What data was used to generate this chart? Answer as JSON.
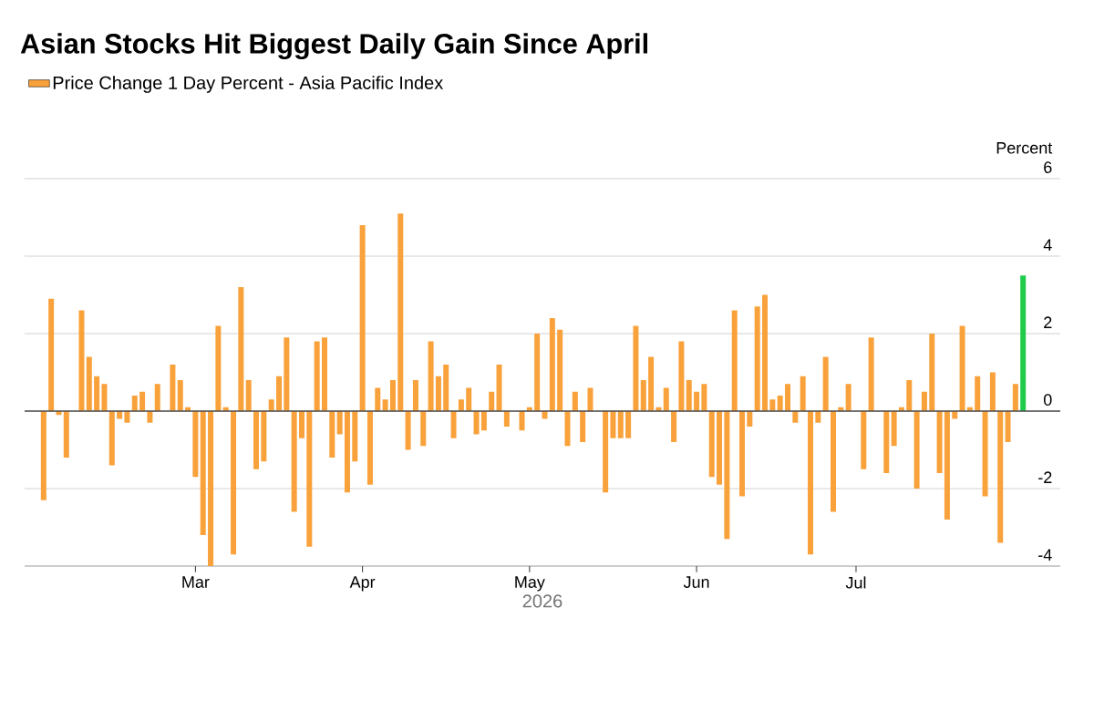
{
  "chart_data": {
    "type": "bar",
    "title": "Asian Stocks Hit Biggest Daily Gain Since April",
    "xlabel": "2026",
    "ylabel": "Percent",
    "categories": [
      null,
      null,
      null,
      null,
      null,
      null,
      null,
      null,
      null,
      null,
      null,
      null,
      null,
      null,
      null,
      null,
      null,
      null,
      null,
      null,
      "Mar",
      null,
      null,
      null,
      null,
      null,
      null,
      null,
      null,
      null,
      null,
      null,
      null,
      null,
      null,
      null,
      null,
      null,
      null,
      null,
      null,
      null,
      "Apr",
      null,
      null,
      null,
      null,
      null,
      null,
      null,
      null,
      null,
      null,
      null,
      null,
      null,
      null,
      null,
      null,
      null,
      null,
      null,
      null,
      null,
      "May",
      null,
      null,
      null,
      null,
      null,
      null,
      null,
      null,
      null,
      null,
      null,
      null,
      null,
      null,
      null,
      null,
      null,
      null,
      null,
      null,
      null,
      "Jun",
      null,
      null,
      null,
      null,
      null,
      null,
      null,
      null,
      null,
      null,
      null,
      null,
      null,
      null,
      null,
      null,
      null,
      null,
      null,
      null,
      "Jul",
      null,
      null,
      null,
      null,
      null,
      null,
      null,
      null,
      null,
      null,
      null,
      null,
      null,
      null,
      null,
      null,
      null,
      null,
      null,
      null,
      null,
      null
    ],
    "series": [
      {
        "name": "Price Change 1 Day Percent - Asia Pacific Index",
        "color": "#f9a13a",
        "values": [
          -2.3,
          2.9,
          -0.1,
          -1.2,
          0.0,
          2.6,
          1.4,
          0.9,
          0.7,
          -1.4,
          -0.2,
          -0.3,
          0.4,
          0.5,
          -0.3,
          0.7,
          0.0,
          1.2,
          0.8,
          0.1,
          -1.7,
          -3.2,
          -4.0,
          2.2,
          0.1,
          -3.7,
          3.2,
          0.8,
          -1.5,
          -1.3,
          0.3,
          0.9,
          1.9,
          -2.6,
          -0.7,
          -3.5,
          1.8,
          1.9,
          -1.2,
          -0.6,
          -2.1,
          -1.3,
          4.8,
          -1.9,
          0.6,
          0.3,
          0.8,
          5.1,
          -1.0,
          0.8,
          -0.9,
          1.8,
          0.9,
          1.2,
          -0.7,
          0.3,
          0.6,
          -0.6,
          -0.5,
          0.5,
          1.2,
          -0.4,
          0.0,
          -0.5,
          0.1,
          2.0,
          -0.2,
          2.4,
          2.1,
          -0.9,
          0.5,
          -0.8,
          0.6,
          0.0,
          -2.1,
          -0.7,
          -0.7,
          -0.7,
          2.2,
          0.8,
          1.4,
          0.1,
          0.6,
          -0.8,
          1.8,
          0.8,
          0.5,
          0.7,
          -1.7,
          -1.9,
          -3.3,
          2.6,
          -2.2,
          -0.4,
          2.7,
          3.0,
          0.3,
          0.4,
          0.7,
          -0.3,
          0.9,
          -3.7,
          -0.3,
          1.4,
          -2.6,
          0.1,
          0.7,
          0.0,
          -1.5,
          1.9,
          0.0,
          -1.6,
          -0.9,
          0.1,
          0.8,
          -2.0,
          0.5,
          2.0,
          -1.6,
          -2.8,
          -0.2,
          2.2,
          0.1,
          0.9,
          -2.2,
          1.0,
          -3.4,
          -0.8,
          0.7,
          3.5
        ],
        "colors": [
          "#f9a13a",
          "#f9a13a",
          "#f9a13a",
          "#f9a13a",
          "#f9a13a",
          "#f9a13a",
          "#f9a13a",
          "#f9a13a",
          "#f9a13a",
          "#f9a13a",
          "#f9a13a",
          "#f9a13a",
          "#f9a13a",
          "#f9a13a",
          "#f9a13a",
          "#f9a13a",
          "#f9a13a",
          "#f9a13a",
          "#f9a13a",
          "#f9a13a",
          "#f9a13a",
          "#f9a13a",
          "#f9a13a",
          "#f9a13a",
          "#f9a13a",
          "#f9a13a",
          "#f9a13a",
          "#f9a13a",
          "#f9a13a",
          "#f9a13a",
          "#f9a13a",
          "#f9a13a",
          "#f9a13a",
          "#f9a13a",
          "#f9a13a",
          "#f9a13a",
          "#f9a13a",
          "#f9a13a",
          "#f9a13a",
          "#f9a13a",
          "#f9a13a",
          "#f9a13a",
          "#f9a13a",
          "#f9a13a",
          "#f9a13a",
          "#f9a13a",
          "#f9a13a",
          "#f9a13a",
          "#f9a13a",
          "#f9a13a",
          "#f9a13a",
          "#f9a13a",
          "#f9a13a",
          "#f9a13a",
          "#f9a13a",
          "#f9a13a",
          "#f9a13a",
          "#f9a13a",
          "#f9a13a",
          "#f9a13a",
          "#f9a13a",
          "#f9a13a",
          "#f9a13a",
          "#f9a13a",
          "#f9a13a",
          "#f9a13a",
          "#f9a13a",
          "#f9a13a",
          "#f9a13a",
          "#f9a13a",
          "#f9a13a",
          "#f9a13a",
          "#f9a13a",
          "#f9a13a",
          "#f9a13a",
          "#f9a13a",
          "#f9a13a",
          "#f9a13a",
          "#f9a13a",
          "#f9a13a",
          "#f9a13a",
          "#f9a13a",
          "#f9a13a",
          "#f9a13a",
          "#f9a13a",
          "#f9a13a",
          "#f9a13a",
          "#f9a13a",
          "#f9a13a",
          "#f9a13a",
          "#f9a13a",
          "#f9a13a",
          "#f9a13a",
          "#f9a13a",
          "#f9a13a",
          "#f9a13a",
          "#f9a13a",
          "#f9a13a",
          "#f9a13a",
          "#f9a13a",
          "#f9a13a",
          "#f9a13a",
          "#f9a13a",
          "#f9a13a",
          "#f9a13a",
          "#f9a13a",
          "#f9a13a",
          "#f9a13a",
          "#f9a13a",
          "#f9a13a",
          "#f9a13a",
          "#f9a13a",
          "#f9a13a",
          "#f9a13a",
          "#f9a13a",
          "#f9a13a",
          "#f9a13a",
          "#f9a13a",
          "#f9a13a",
          "#f9a13a",
          "#f9a13a",
          "#f9a13a",
          "#f9a13a",
          "#f9a13a",
          "#f9a13a",
          "#f9a13a",
          "#f9a13a",
          "#f9a13a",
          "#f9a13a",
          "#1fcc4a"
        ]
      }
    ],
    "ylim": [
      -4,
      6
    ],
    "yticks": [
      -4,
      -2,
      0,
      2,
      4,
      6
    ],
    "grid": "y",
    "legend": "top left"
  }
}
